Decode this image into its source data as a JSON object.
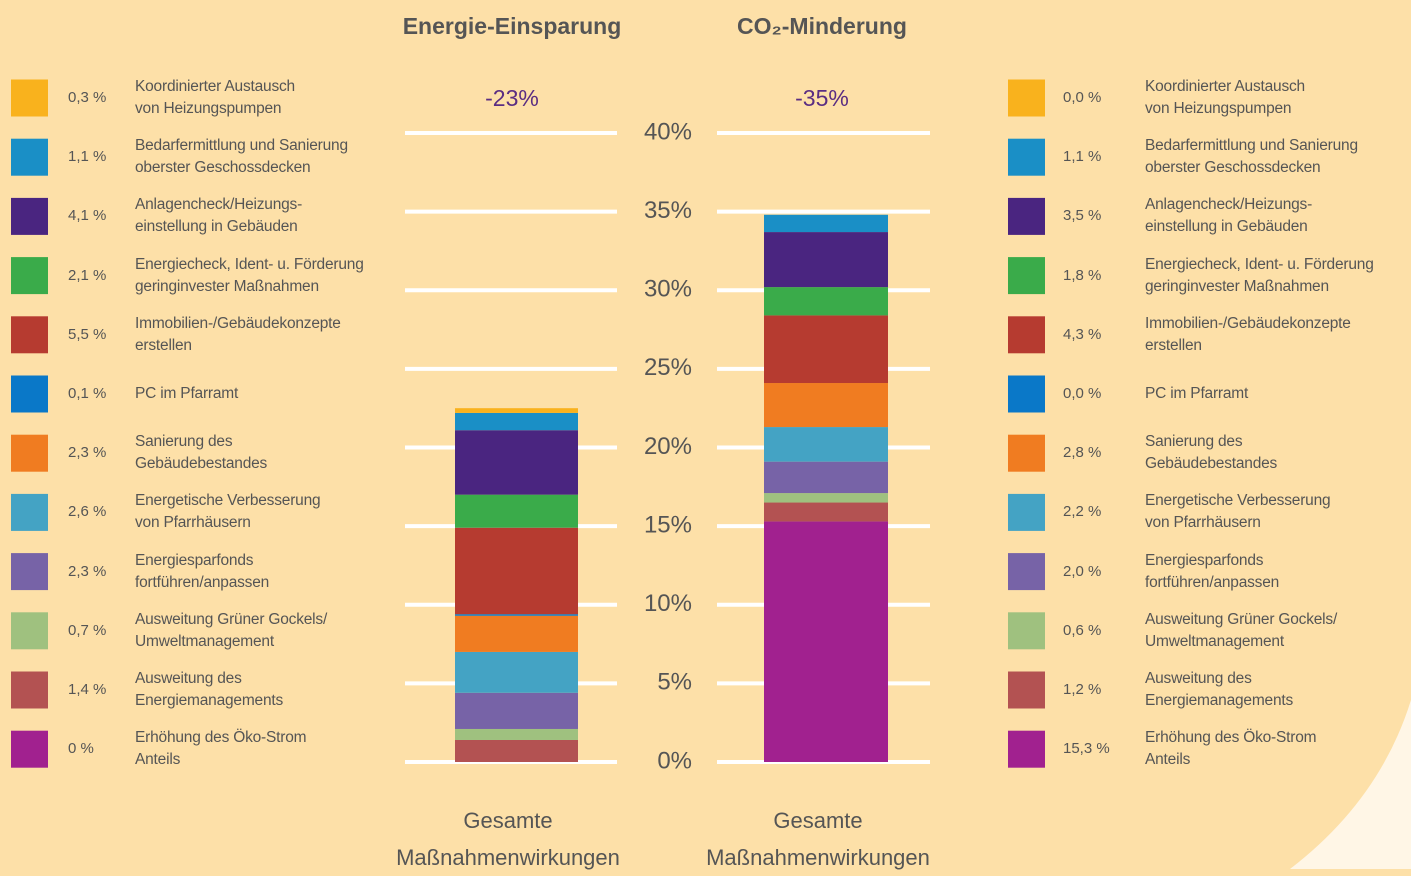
{
  "chart_data": [
    {
      "type": "stacked_bar",
      "title": "Energie-Einsparung",
      "annotation": "-23%",
      "x_label": "Gesamte\nMaßnahmenwirkungen",
      "ylim": [
        0,
        40
      ],
      "yticks": [
        {
          "value": 0,
          "label": "0%"
        },
        {
          "value": 5,
          "label": "5%"
        },
        {
          "value": 10,
          "label": "10%"
        },
        {
          "value": 15,
          "label": "15%"
        },
        {
          "value": 20,
          "label": "20%"
        },
        {
          "value": 25,
          "label": "25%"
        },
        {
          "value": 30,
          "label": "30%"
        },
        {
          "value": 35,
          "label": "35%"
        },
        {
          "value": 40,
          "label": "40%"
        }
      ],
      "grid": true,
      "series": [
        {
          "name": "Koordinierter Austausch\nvon Heizungspumpen",
          "color": "#f9b21d",
          "values": [
            0.3
          ],
          "value_labels": [
            "0,3 %"
          ]
        },
        {
          "name": "Bedarfermittlung und Sanierung\noberster Geschossdecken",
          "color": "#1a8fc6",
          "values": [
            1.1
          ],
          "value_labels": [
            "1,1 %"
          ]
        },
        {
          "name": "Anlagencheck/Heizungs-\neinstellung in Gebäuden",
          "color": "#4a2580",
          "values": [
            4.1
          ],
          "value_labels": [
            "4,1 %"
          ]
        },
        {
          "name": "Energiecheck, Ident- u. Förderung\ngeringinvester Maßnahmen",
          "color": "#3aab4a",
          "values": [
            2.1
          ],
          "value_labels": [
            "2,1 %"
          ]
        },
        {
          "name": "Immobilien-/Gebäudekonzepte\nerstellen",
          "color": "#b63b30",
          "values": [
            5.5
          ],
          "value_labels": [
            "5,5 %"
          ]
        },
        {
          "name": "PC im Pfarramt",
          "color": "#0a78c8",
          "values": [
            0.1
          ],
          "value_labels": [
            "0,1 %"
          ]
        },
        {
          "name": "Sanierung des\nGebäudebestandes",
          "color": "#f07c21",
          "values": [
            2.3
          ],
          "value_labels": [
            "2,3 %"
          ]
        },
        {
          "name": "Energetische Verbesserung\nvon Pfarrhäusern",
          "color": "#44a3c4",
          "values": [
            2.6
          ],
          "value_labels": [
            "2,6 %"
          ]
        },
        {
          "name": "Energiesparfonds\nfortführen/anpassen",
          "color": "#7763a7",
          "values": [
            2.3
          ],
          "value_labels": [
            "2,3 %"
          ]
        },
        {
          "name": "Ausweitung Grüner Gockels/\nUmweltmanagement",
          "color": "#9fc17f",
          "values": [
            0.7
          ],
          "value_labels": [
            "0,7 %"
          ]
        },
        {
          "name": "Ausweitung des\nEnergiemanagements",
          "color": "#b35252",
          "values": [
            1.4
          ],
          "value_labels": [
            "1,4 %"
          ]
        },
        {
          "name": "Erhöhung des Öko-Strom\nAnteils",
          "color": "#a1218f",
          "values": [
            0
          ],
          "value_labels": [
            "0 %"
          ]
        }
      ]
    },
    {
      "type": "stacked_bar",
      "title": "CO₂-Minderung",
      "annotation": "-35%",
      "x_label": "Gesamte\nMaßnahmenwirkungen",
      "ylim": [
        0,
        40
      ],
      "yticks": [
        {
          "value": 0,
          "label": "0%"
        },
        {
          "value": 5,
          "label": "5%"
        },
        {
          "value": 10,
          "label": "10%"
        },
        {
          "value": 15,
          "label": "15%"
        },
        {
          "value": 20,
          "label": "20%"
        },
        {
          "value": 25,
          "label": "25%"
        },
        {
          "value": 30,
          "label": "30%"
        },
        {
          "value": 35,
          "label": "35%"
        },
        {
          "value": 40,
          "label": "40%"
        }
      ],
      "grid": true,
      "series": [
        {
          "name": "Koordinierter Austausch\nvon Heizungspumpen",
          "color": "#f9b21d",
          "values": [
            0.0
          ],
          "value_labels": [
            "0,0 %"
          ]
        },
        {
          "name": "Bedarfermittlung und Sanierung\noberster Geschossdecken",
          "color": "#1a8fc6",
          "values": [
            1.1
          ],
          "value_labels": [
            "1,1 %"
          ]
        },
        {
          "name": "Anlagencheck/Heizungs-\neinstellung in Gebäuden",
          "color": "#4a2580",
          "values": [
            3.5
          ],
          "value_labels": [
            "3,5 %"
          ]
        },
        {
          "name": "Energiecheck, Ident- u. Förderung\ngeringinvester Maßnahmen",
          "color": "#3aab4a",
          "values": [
            1.8
          ],
          "value_labels": [
            "1,8 %"
          ]
        },
        {
          "name": "Immobilien-/Gebäudekonzepte\nerstellen",
          "color": "#b63b30",
          "values": [
            4.3
          ],
          "value_labels": [
            "4,3 %"
          ]
        },
        {
          "name": "PC im Pfarramt",
          "color": "#0a78c8",
          "values": [
            0.0
          ],
          "value_labels": [
            "0,0 %"
          ]
        },
        {
          "name": "Sanierung des\nGebäudebestandes",
          "color": "#f07c21",
          "values": [
            2.8
          ],
          "value_labels": [
            "2,8 %"
          ]
        },
        {
          "name": "Energetische Verbesserung\nvon Pfarrhäusern",
          "color": "#44a3c4",
          "values": [
            2.2
          ],
          "value_labels": [
            "2,2 %"
          ]
        },
        {
          "name": "Energiesparfonds\nfortführen/anpassen",
          "color": "#7763a7",
          "values": [
            2.0
          ],
          "value_labels": [
            "2,0 %"
          ]
        },
        {
          "name": "Ausweitung Grüner Gockels/\nUmweltmanagement",
          "color": "#9fc17f",
          "values": [
            0.6
          ],
          "value_labels": [
            "0,6 %"
          ]
        },
        {
          "name": "Ausweitung des\nEnergiemanagements",
          "color": "#b35252",
          "values": [
            1.2
          ],
          "value_labels": [
            "1,2 %"
          ]
        },
        {
          "name": "Erhöhung des Öko-Strom\nAnteils",
          "color": "#a1218f",
          "values": [
            15.3
          ],
          "value_labels": [
            "15,3 %"
          ]
        }
      ]
    }
  ]
}
